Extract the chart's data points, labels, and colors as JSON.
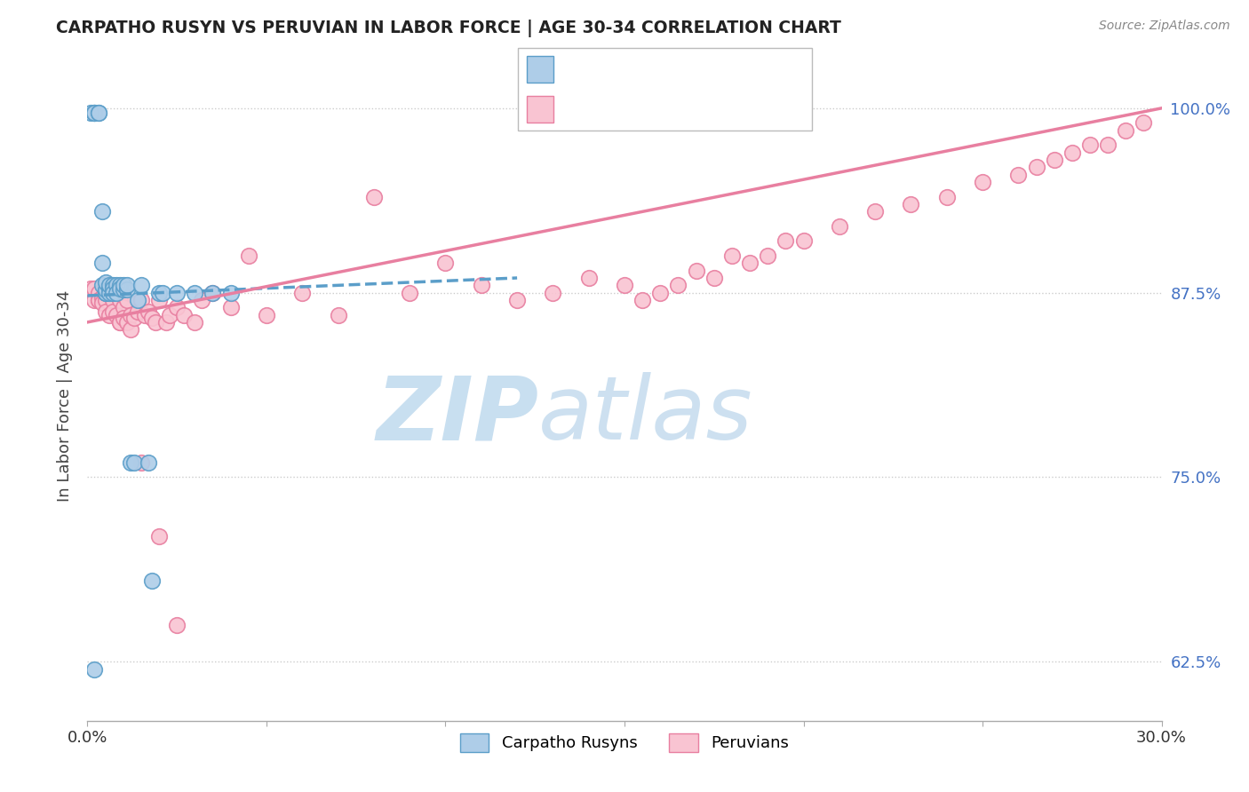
{
  "title": "CARPATHO RUSYN VS PERUVIAN IN LABOR FORCE | AGE 30-34 CORRELATION CHART",
  "source": "Source: ZipAtlas.com",
  "ylabel": "In Labor Force | Age 30-34",
  "xlim": [
    0.0,
    0.3
  ],
  "ylim": [
    0.585,
    1.025
  ],
  "xticks": [
    0.0,
    0.05,
    0.1,
    0.15,
    0.2,
    0.25,
    0.3
  ],
  "xticklabels": [
    "0.0%",
    "",
    "",
    "",
    "",
    "",
    "30.0%"
  ],
  "yticks_right": [
    0.625,
    0.75,
    0.875,
    1.0
  ],
  "ytick_labels_right": [
    "62.5%",
    "75.0%",
    "87.5%",
    "100.0%"
  ],
  "blue_color": "#aecde8",
  "blue_edge": "#5b9ec9",
  "pink_color": "#f9c4d2",
  "pink_edge": "#e87fa0",
  "trend_blue_color": "#5b9ec9",
  "trend_pink_color": "#e87fa0",
  "watermark_zip": "ZIP",
  "watermark_atlas": "atlas",
  "watermark_color": "#c8dff0",
  "grid_color": "#cccccc",
  "background_color": "#ffffff",
  "blue_scatter_x": [
    0.001,
    0.002,
    0.002,
    0.002,
    0.003,
    0.003,
    0.004,
    0.004,
    0.004,
    0.005,
    0.005,
    0.005,
    0.005,
    0.006,
    0.006,
    0.006,
    0.007,
    0.007,
    0.007,
    0.008,
    0.008,
    0.009,
    0.009,
    0.01,
    0.01,
    0.011,
    0.011,
    0.012,
    0.013,
    0.014,
    0.015,
    0.017,
    0.018,
    0.02,
    0.021,
    0.025,
    0.03,
    0.035,
    0.04,
    0.002
  ],
  "blue_scatter_y": [
    0.997,
    0.997,
    0.997,
    0.997,
    0.997,
    0.997,
    0.93,
    0.895,
    0.88,
    0.875,
    0.875,
    0.877,
    0.882,
    0.878,
    0.875,
    0.88,
    0.88,
    0.878,
    0.875,
    0.88,
    0.875,
    0.88,
    0.878,
    0.877,
    0.88,
    0.877,
    0.88,
    0.76,
    0.76,
    0.87,
    0.88,
    0.76,
    0.68,
    0.875,
    0.875,
    0.875,
    0.875,
    0.875,
    0.875,
    0.62
  ],
  "pink_scatter_x": [
    0.001,
    0.002,
    0.002,
    0.003,
    0.003,
    0.003,
    0.004,
    0.004,
    0.005,
    0.005,
    0.005,
    0.006,
    0.006,
    0.007,
    0.007,
    0.008,
    0.008,
    0.009,
    0.009,
    0.009,
    0.01,
    0.01,
    0.011,
    0.011,
    0.012,
    0.012,
    0.013,
    0.014,
    0.015,
    0.016,
    0.017,
    0.018,
    0.019,
    0.02,
    0.022,
    0.023,
    0.025,
    0.027,
    0.03,
    0.032,
    0.035,
    0.04,
    0.045,
    0.05,
    0.06,
    0.07,
    0.08,
    0.09,
    0.1,
    0.11,
    0.12,
    0.13,
    0.14,
    0.15,
    0.155,
    0.16,
    0.165,
    0.17,
    0.175,
    0.18,
    0.185,
    0.19,
    0.195,
    0.2,
    0.21,
    0.22,
    0.23,
    0.24,
    0.25,
    0.26,
    0.265,
    0.27,
    0.275,
    0.28,
    0.285,
    0.29,
    0.295,
    0.015,
    0.02,
    0.025
  ],
  "pink_scatter_y": [
    0.878,
    0.87,
    0.878,
    0.87,
    0.875,
    0.87,
    0.872,
    0.868,
    0.87,
    0.875,
    0.862,
    0.875,
    0.86,
    0.87,
    0.862,
    0.875,
    0.86,
    0.855,
    0.87,
    0.855,
    0.865,
    0.858,
    0.87,
    0.855,
    0.86,
    0.85,
    0.858,
    0.862,
    0.87,
    0.86,
    0.862,
    0.858,
    0.855,
    0.87,
    0.855,
    0.86,
    0.865,
    0.86,
    0.855,
    0.87,
    0.875,
    0.865,
    0.9,
    0.86,
    0.875,
    0.86,
    0.94,
    0.875,
    0.895,
    0.88,
    0.87,
    0.875,
    0.885,
    0.88,
    0.87,
    0.875,
    0.88,
    0.89,
    0.885,
    0.9,
    0.895,
    0.9,
    0.91,
    0.91,
    0.92,
    0.93,
    0.935,
    0.94,
    0.95,
    0.955,
    0.96,
    0.965,
    0.97,
    0.975,
    0.975,
    0.985,
    0.99,
    0.76,
    0.71,
    0.65
  ],
  "blue_trend_x0": 0.0,
  "blue_trend_x1": 0.12,
  "blue_trend_y0": 0.873,
  "blue_trend_y1": 0.885,
  "pink_trend_x0": 0.0,
  "pink_trend_x1": 0.3,
  "pink_trend_y0": 0.855,
  "pink_trend_y1": 1.0
}
